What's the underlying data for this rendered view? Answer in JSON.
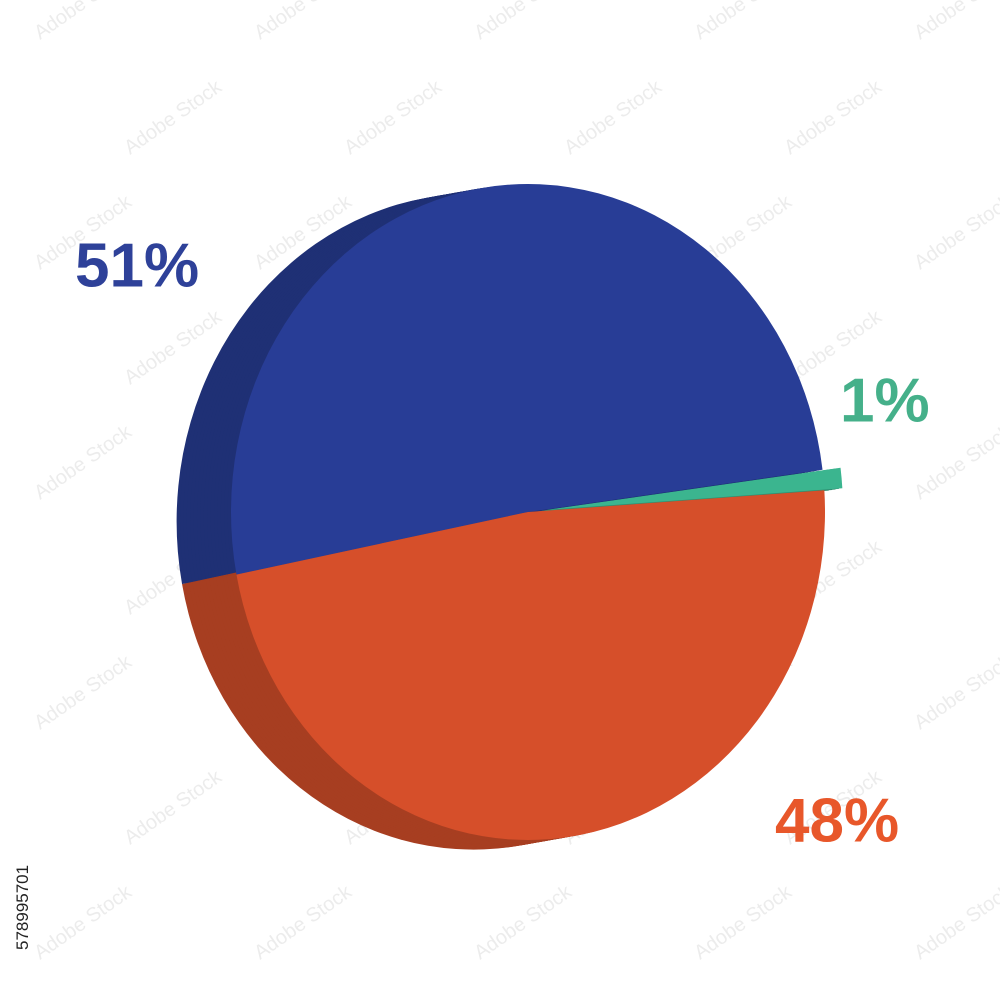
{
  "chart_data": {
    "type": "pie",
    "categories": [
      null,
      null,
      null
    ],
    "values": [
      51,
      1,
      48
    ],
    "value_labels": [
      "51%",
      "1%",
      "48%"
    ],
    "colors": [
      "#283d96",
      "#3bb58f",
      "#d64f2a"
    ],
    "watermark": "Adobe Stock",
    "stock_id": "578995701"
  }
}
